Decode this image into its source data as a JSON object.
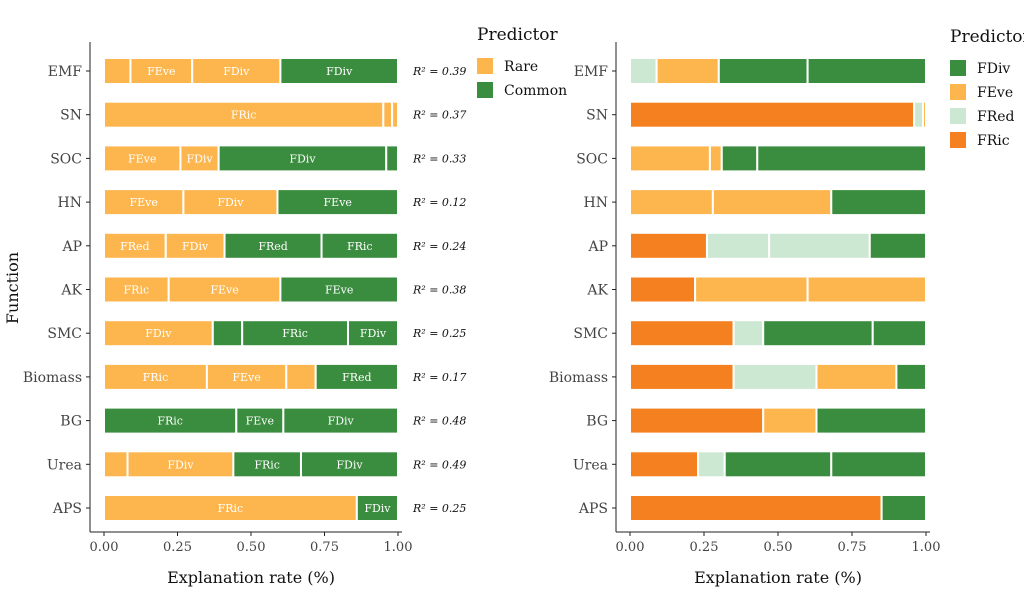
{
  "chart_data": [
    {
      "type": "bar",
      "orientation": "horizontal",
      "stacked": true,
      "xlabel": "Explanation rate (%)",
      "ylabel": "Function",
      "xlim": [
        0,
        1
      ],
      "xticks": [
        "0.00",
        "0.25",
        "0.50",
        "0.75",
        "1.00"
      ],
      "legend": {
        "title": "Predictor",
        "position": "right",
        "entries": [
          {
            "label": "Rare",
            "color": "#FDB64E"
          },
          {
            "label": "Common",
            "color": "#3A8C3E"
          }
        ]
      },
      "categories": [
        "EMF",
        "SN",
        "SOC",
        "HN",
        "AP",
        "AK",
        "SMC",
        "Biomass",
        "BG",
        "Urea",
        "APS"
      ],
      "r2": [
        "R² = 0.39",
        "R² = 0.37",
        "R² = 0.33",
        "R² = 0.12",
        "R² = 0.24",
        "R² = 0.38",
        "R² = 0.25",
        "R² = 0.17",
        "R² = 0.48",
        "R² = 0.49",
        "R² = 0.25"
      ],
      "bars": [
        [
          {
            "group": "Rare",
            "label": "",
            "value": 0.09
          },
          {
            "group": "Rare",
            "label": "FEve",
            "value": 0.21
          },
          {
            "group": "Rare",
            "label": "FDiv",
            "value": 0.3
          },
          {
            "group": "Common",
            "label": "FDiv",
            "value": 0.4
          }
        ],
        [
          {
            "group": "Rare",
            "label": "FRic",
            "value": 0.95
          },
          {
            "group": "Rare",
            "label": "",
            "value": 0.03
          },
          {
            "group": "Rare",
            "label": "",
            "value": 0.02
          }
        ],
        [
          {
            "group": "Rare",
            "label": "FEve",
            "value": 0.26
          },
          {
            "group": "Rare",
            "label": "FDiv",
            "value": 0.13
          },
          {
            "group": "Common",
            "label": "FDiv",
            "value": 0.57
          },
          {
            "group": "Common",
            "label": "",
            "value": 0.04
          }
        ],
        [
          {
            "group": "Rare",
            "label": "FEve",
            "value": 0.27
          },
          {
            "group": "Rare",
            "label": "FDiv",
            "value": 0.32
          },
          {
            "group": "Common",
            "label": "FEve",
            "value": 0.41
          }
        ],
        [
          {
            "group": "Rare",
            "label": "FRed",
            "value": 0.21
          },
          {
            "group": "Rare",
            "label": "FDiv",
            "value": 0.2
          },
          {
            "group": "Common",
            "label": "FRed",
            "value": 0.33
          },
          {
            "group": "Common",
            "label": "FRic",
            "value": 0.26
          }
        ],
        [
          {
            "group": "Rare",
            "label": "FRic",
            "value": 0.22
          },
          {
            "group": "Rare",
            "label": "FEve",
            "value": 0.38
          },
          {
            "group": "Common",
            "label": "FEve",
            "value": 0.4
          }
        ],
        [
          {
            "group": "Rare",
            "label": "FDiv",
            "value": 0.37
          },
          {
            "group": "Common",
            "label": "",
            "value": 0.1
          },
          {
            "group": "Common",
            "label": "FRic",
            "value": 0.36
          },
          {
            "group": "Common",
            "label": "FDiv",
            "value": 0.17
          }
        ],
        [
          {
            "group": "Rare",
            "label": "FRic",
            "value": 0.35
          },
          {
            "group": "Rare",
            "label": "FEve",
            "value": 0.27
          },
          {
            "group": "Rare",
            "label": "",
            "value": 0.1
          },
          {
            "group": "Common",
            "label": "FRed",
            "value": 0.28
          }
        ],
        [
          {
            "group": "Common",
            "label": "FRic",
            "value": 0.45
          },
          {
            "group": "Common",
            "label": "FEve",
            "value": 0.16
          },
          {
            "group": "Common",
            "label": "FDiv",
            "value": 0.39
          }
        ],
        [
          {
            "group": "Rare",
            "label": "",
            "value": 0.08
          },
          {
            "group": "Rare",
            "label": "FDiv",
            "value": 0.36
          },
          {
            "group": "Common",
            "label": "FRic",
            "value": 0.23
          },
          {
            "group": "Common",
            "label": "FDiv",
            "value": 0.33
          }
        ],
        [
          {
            "group": "Rare",
            "label": "FRic",
            "value": 0.86
          },
          {
            "group": "Common",
            "label": "FDiv",
            "value": 0.14
          }
        ]
      ]
    },
    {
      "type": "bar",
      "orientation": "horizontal",
      "stacked": true,
      "xlabel": "Explanation rate (%)",
      "ylabel": "",
      "xlim": [
        0,
        1
      ],
      "xticks": [
        "0.00",
        "0.25",
        "0.50",
        "0.75",
        "1.00"
      ],
      "legend": {
        "title": "Predictor",
        "position": "right",
        "entries": [
          {
            "label": "FDiv",
            "color": "#3A8C3E"
          },
          {
            "label": "FEve",
            "color": "#FDB64E"
          },
          {
            "label": "FRed",
            "color": "#CDE8D2"
          },
          {
            "label": "FRic",
            "color": "#F4801F"
          }
        ]
      },
      "categories": [
        "EMF",
        "SN",
        "SOC",
        "HN",
        "AP",
        "AK",
        "SMC",
        "Biomass",
        "BG",
        "Urea",
        "APS"
      ],
      "bars": [
        [
          {
            "predictor": "FRed",
            "value": 0.09
          },
          {
            "predictor": "FEve",
            "value": 0.21
          },
          {
            "predictor": "FDiv",
            "value": 0.3
          },
          {
            "predictor": "FDiv",
            "value": 0.4
          }
        ],
        [
          {
            "predictor": "FRic",
            "value": 0.96
          },
          {
            "predictor": "FRed",
            "value": 0.03
          },
          {
            "predictor": "FEve",
            "value": 0.01
          }
        ],
        [
          {
            "predictor": "FEve",
            "value": 0.27
          },
          {
            "predictor": "FEve",
            "value": 0.04
          },
          {
            "predictor": "FDiv",
            "value": 0.12
          },
          {
            "predictor": "FDiv",
            "value": 0.57
          }
        ],
        [
          {
            "predictor": "FEve",
            "value": 0.28
          },
          {
            "predictor": "FEve",
            "value": 0.4
          },
          {
            "predictor": "FDiv",
            "value": 0.32
          }
        ],
        [
          {
            "predictor": "FRic",
            "value": 0.26
          },
          {
            "predictor": "FRed",
            "value": 0.21
          },
          {
            "predictor": "FRed",
            "value": 0.34
          },
          {
            "predictor": "FDiv",
            "value": 0.19
          }
        ],
        [
          {
            "predictor": "FRic",
            "value": 0.22
          },
          {
            "predictor": "FEve",
            "value": 0.38
          },
          {
            "predictor": "FEve",
            "value": 0.4
          }
        ],
        [
          {
            "predictor": "FRic",
            "value": 0.35
          },
          {
            "predictor": "FRed",
            "value": 0.1
          },
          {
            "predictor": "FDiv",
            "value": 0.37
          },
          {
            "predictor": "FDiv",
            "value": 0.18
          }
        ],
        [
          {
            "predictor": "FRic",
            "value": 0.35
          },
          {
            "predictor": "FRed",
            "value": 0.28
          },
          {
            "predictor": "FEve",
            "value": 0.27
          },
          {
            "predictor": "FDiv",
            "value": 0.1
          }
        ],
        [
          {
            "predictor": "FRic",
            "value": 0.45
          },
          {
            "predictor": "FEve",
            "value": 0.18
          },
          {
            "predictor": "FDiv",
            "value": 0.37
          }
        ],
        [
          {
            "predictor": "FRic",
            "value": 0.23
          },
          {
            "predictor": "FRed",
            "value": 0.09
          },
          {
            "predictor": "FDiv",
            "value": 0.36
          },
          {
            "predictor": "FDiv",
            "value": 0.32
          }
        ],
        [
          {
            "predictor": "FRic",
            "value": 0.85
          },
          {
            "predictor": "FDiv",
            "value": 0.15
          }
        ]
      ]
    }
  ]
}
